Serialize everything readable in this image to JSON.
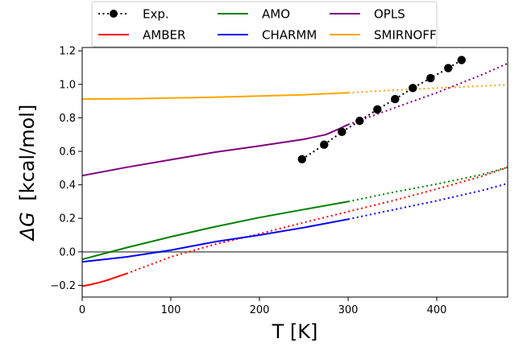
{
  "chart_data": {
    "type": "line",
    "xlabel": "T [K]",
    "ylabel_symbol": "ΔG",
    "ylabel_unit": "[kcal/mol]",
    "xlim": [
      0,
      480
    ],
    "ylim": [
      -0.27,
      1.22
    ],
    "xticks": [
      0,
      100,
      200,
      300,
      400
    ],
    "xtick_labels": [
      "0",
      "100",
      "200",
      "300",
      "400"
    ],
    "yticks": [
      -0.2,
      0.0,
      0.2,
      0.4,
      0.6,
      0.8,
      1.0,
      1.2
    ],
    "ytick_labels": [
      "−0.2",
      "0.0",
      "0.2",
      "0.4",
      "0.6",
      "0.8",
      "1.0",
      "1.2"
    ],
    "reference_line": {
      "y": 0.0,
      "color": "#808080"
    },
    "legend_position": "top, outside",
    "series": [
      {
        "name": "Exp.",
        "key": "exp",
        "color": "#000000",
        "style": "dotted-markers",
        "x": [
          248,
          273,
          293,
          313,
          333,
          353,
          373,
          393,
          413,
          428
        ],
        "y": [
          0.553,
          0.64,
          0.716,
          0.782,
          0.85,
          0.912,
          0.978,
          1.037,
          1.097,
          1.145
        ]
      },
      {
        "name": "AMBER",
        "key": "amber",
        "color": "#ff0000",
        "solid": {
          "x": [
            0,
            10,
            20,
            30,
            40,
            50
          ],
          "y": [
            -0.205,
            -0.195,
            -0.182,
            -0.166,
            -0.148,
            -0.13
          ]
        },
        "dotted": {
          "x": [
            50,
            100,
            150,
            200,
            250,
            300,
            350,
            400,
            450,
            480
          ],
          "y": [
            -0.13,
            -0.03,
            0.045,
            0.108,
            0.175,
            0.24,
            0.305,
            0.375,
            0.45,
            0.505
          ]
        }
      },
      {
        "name": "AMO",
        "key": "amo",
        "color": "#008000",
        "solid": {
          "x": [
            0,
            50,
            100,
            150,
            200,
            250,
            300
          ],
          "y": [
            -0.045,
            0.025,
            0.09,
            0.15,
            0.205,
            0.253,
            0.3
          ]
        },
        "dotted": {
          "x": [
            300,
            350,
            400,
            450,
            480
          ],
          "y": [
            0.3,
            0.355,
            0.405,
            0.46,
            0.505
          ]
        }
      },
      {
        "name": "CHARMM",
        "key": "charmm",
        "color": "#0000ff",
        "solid": {
          "x": [
            0,
            50,
            100,
            150,
            200,
            250,
            300
          ],
          "y": [
            -0.06,
            -0.03,
            0.01,
            0.06,
            0.1,
            0.145,
            0.195
          ]
        },
        "dotted": {
          "x": [
            300,
            350,
            400,
            450,
            480
          ],
          "y": [
            0.195,
            0.25,
            0.305,
            0.365,
            0.408
          ]
        }
      },
      {
        "name": "OPLS",
        "key": "opls",
        "color": "#800080",
        "solid": {
          "x": [
            0,
            50,
            100,
            150,
            200,
            250,
            275,
            290,
            300
          ],
          "y": [
            0.455,
            0.505,
            0.55,
            0.595,
            0.632,
            0.672,
            0.7,
            0.735,
            0.76
          ]
        },
        "dotted": {
          "x": [
            300,
            350,
            400,
            450,
            480
          ],
          "y": [
            0.76,
            0.855,
            0.95,
            1.055,
            1.125
          ]
        }
      },
      {
        "name": "SMIRNOFF",
        "key": "smirnoff",
        "color": "#ffa500",
        "solid": {
          "x": [
            0,
            50,
            100,
            150,
            200,
            250,
            300
          ],
          "y": [
            0.912,
            0.914,
            0.918,
            0.923,
            0.93,
            0.938,
            0.95
          ]
        },
        "dotted": {
          "x": [
            300,
            350,
            400,
            450,
            480
          ],
          "y": [
            0.95,
            0.965,
            0.978,
            0.99,
            0.998
          ]
        }
      }
    ]
  }
}
